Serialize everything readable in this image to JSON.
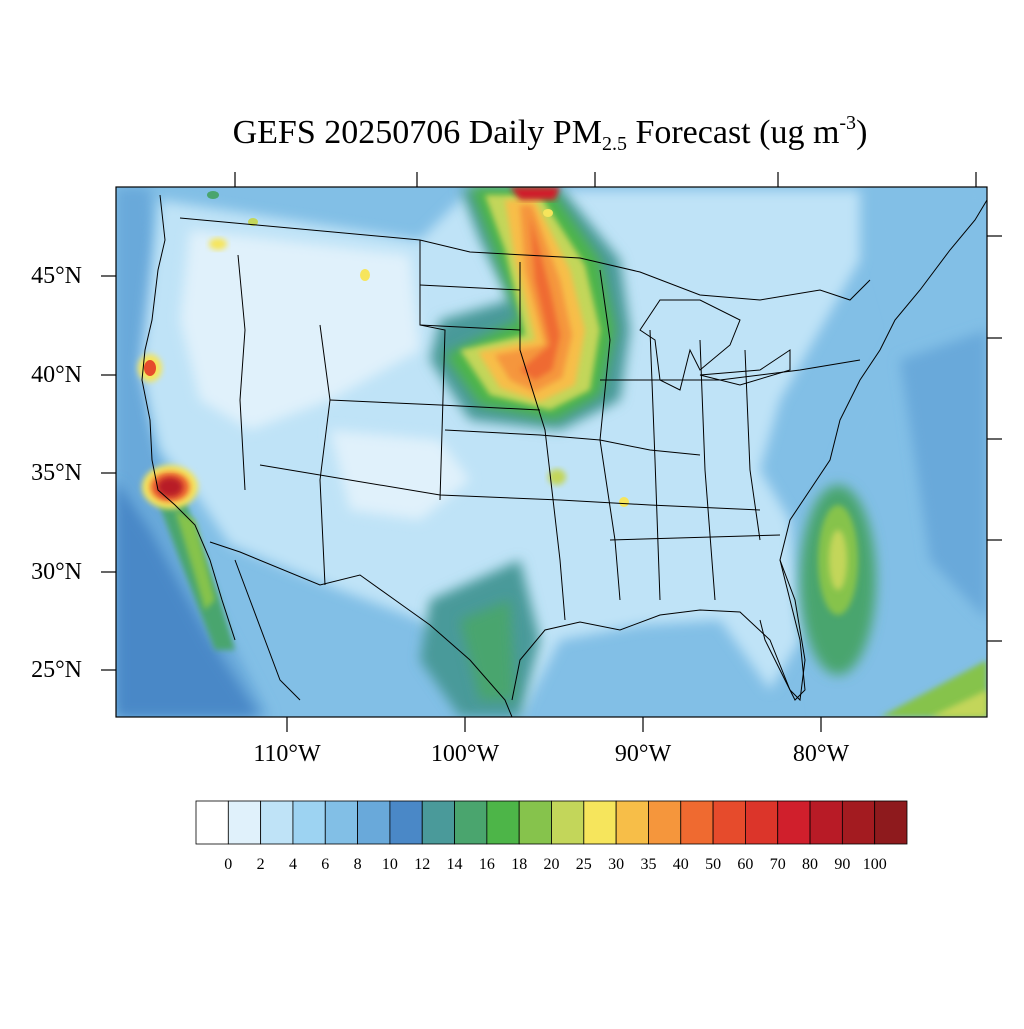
{
  "title": {
    "prefix": "GEFS 20250706 Daily PM",
    "subscript": "2.5",
    "middle": " Forecast (ug m",
    "superscript": "-3",
    "suffix": ")"
  },
  "map": {
    "projection": "lambert-like lat/lon",
    "extent": {
      "lon_min": -119.5,
      "lon_max": -71.0,
      "lat_min": 22.5,
      "lat_max": 49.5
    },
    "land_mask": "none",
    "coastlines": "black",
    "state_borders": "black"
  },
  "axes": {
    "lat_labels": [
      "45°N",
      "40°N",
      "35°N",
      "30°N",
      "25°N"
    ],
    "lon_labels": [
      "110°W",
      "100°W",
      "90°W",
      "80°W"
    ]
  },
  "colorbar": {
    "labels": [
      "0",
      "2",
      "4",
      "6",
      "8",
      "10",
      "12",
      "14",
      "16",
      "18",
      "20",
      "25",
      "30",
      "35",
      "40",
      "50",
      "60",
      "70",
      "80",
      "90",
      "100"
    ],
    "colors": [
      "#ffffff",
      "#e0f1fb",
      "#bfe3f7",
      "#9dd3f2",
      "#82bfe6",
      "#69a9da",
      "#4a88c7",
      "#4a9a9a",
      "#4aa56e",
      "#4db548",
      "#86c34c",
      "#c3d65a",
      "#f6e55c",
      "#f7be48",
      "#f5963c",
      "#ef6a30",
      "#e64b2c",
      "#dc352a",
      "#d01f2c",
      "#b81b26",
      "#a31b20",
      "#8e1a1d"
    ]
  },
  "features": {
    "plumes": [
      {
        "name": "northern-plains-plume",
        "peak_value": 50
      },
      {
        "name": "southern-california-hotspot",
        "peak_value": 60
      },
      {
        "name": "northern-california-hotspot",
        "peak_value": 50
      },
      {
        "name": "gulf-stream-band",
        "peak_value": 25
      },
      {
        "name": "caribbean-area",
        "peak_value": 25
      }
    ]
  }
}
